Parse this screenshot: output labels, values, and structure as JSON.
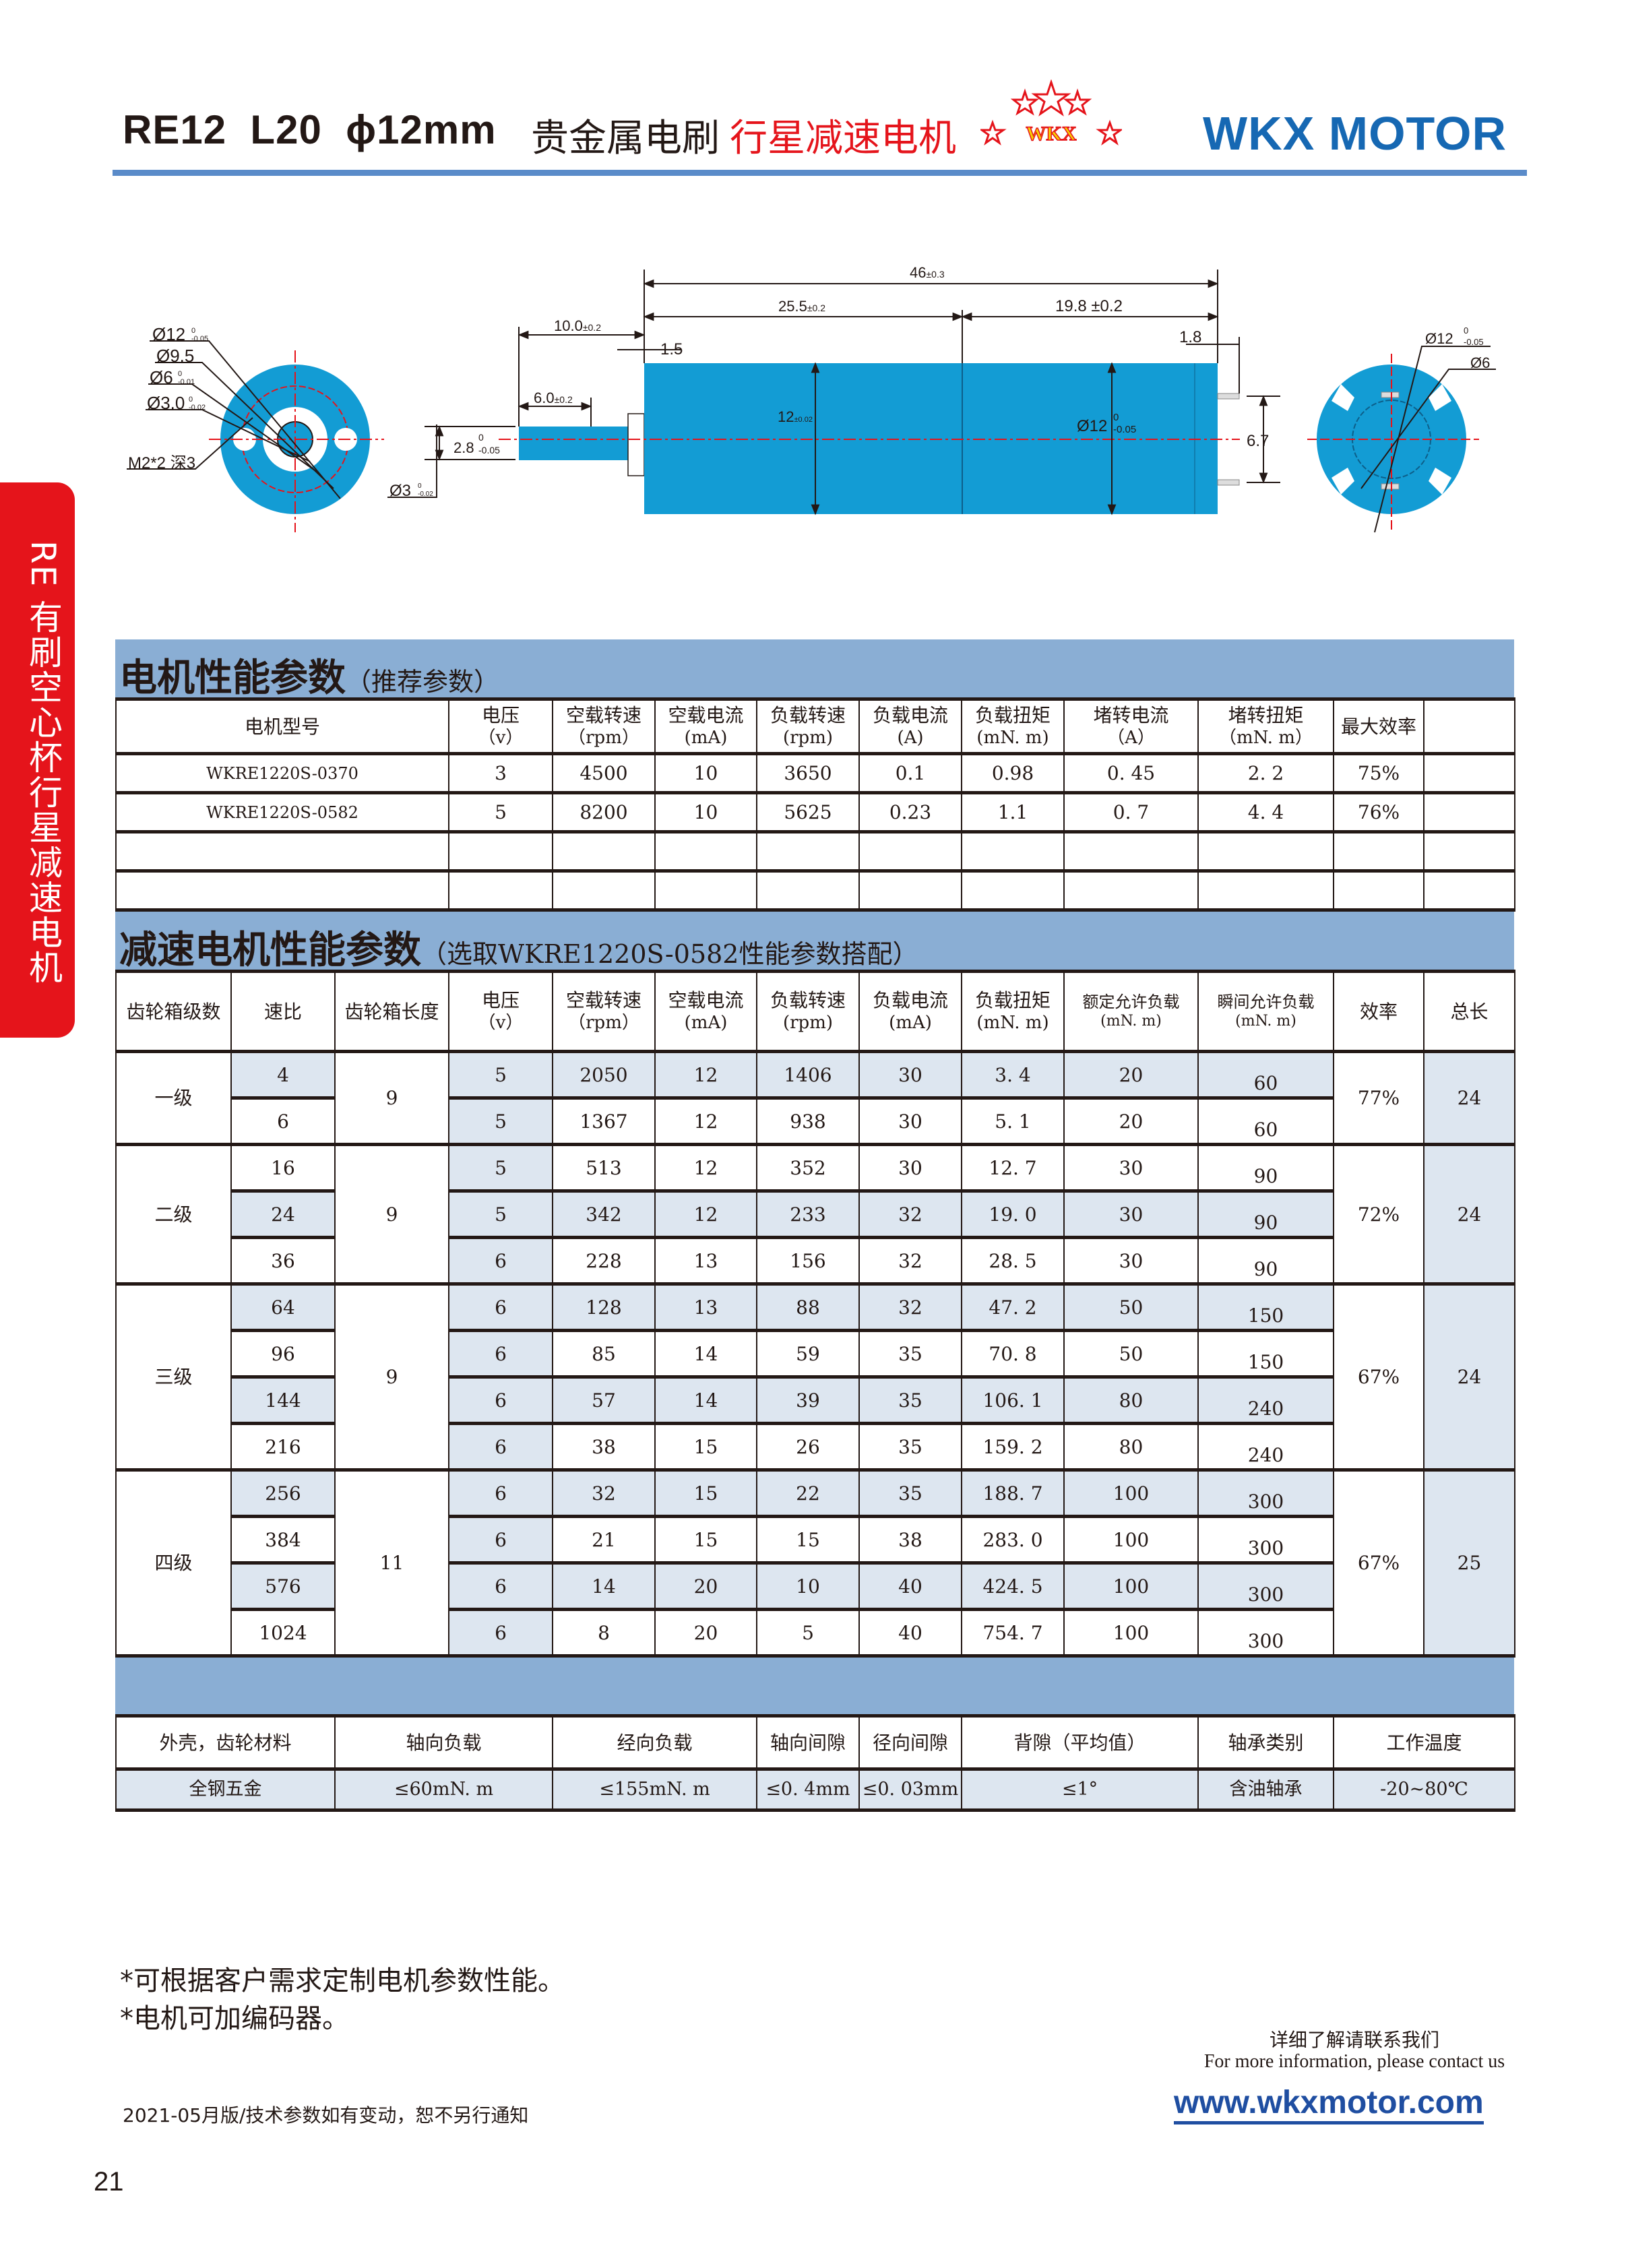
{
  "header": {
    "model": "RE12  L20  ϕ12mm",
    "title_black": "贵金属电刷",
    "title_red": "行星减速电机",
    "logo_text": "WKX",
    "brand": "WKX MOTOR"
  },
  "side_tab": "RE 有刷空心杯行星减速电机",
  "colors": {
    "accent_blue": "#5a8bc9",
    "motor_blue": "#139cd4",
    "band_blue": "#8aaed4",
    "cell_shade": "#dde6f0",
    "red": "#e5141b",
    "brand_blue": "#1668b3"
  },
  "drawing": {
    "front": {
      "d12": {
        "main": "Ø12",
        "tol_up": "0",
        "tol_low": "-0.05"
      },
      "d9_5": {
        "main": "Ø9.5"
      },
      "d6": {
        "main": "Ø6",
        "tol_up": "0",
        "tol_low": "-0.01"
      },
      "d3": {
        "main": "Ø3.0",
        "tol_up": "0",
        "tol_low": "-0.02"
      },
      "thread": "M2*2 深3"
    },
    "side": {
      "total": {
        "main": "46",
        "tol": "±0.3"
      },
      "gearbox": {
        "main": "25.5",
        "tol": "±0.2"
      },
      "motor": "19.8 ±0.2",
      "shaft": {
        "main": "10.0",
        "tol": "±0.2"
      },
      "flange": "1.5",
      "terminal": "1.8",
      "flat": {
        "main": "6.0",
        "tol": "±0.2"
      },
      "flat_depth": {
        "main": "2.8",
        "tol_up": "0",
        "tol_low": "-0.05"
      },
      "shaft_dia": {
        "main": "Ø3",
        "tol_up": "0",
        "tol_low": "-0.02"
      },
      "gear_dia": {
        "main": "12",
        "tol": "±0.02"
      },
      "motor_dia": {
        "main": "Ø12",
        "tol_up": "0",
        "tol_low": "-0.05"
      },
      "terminal_pitch": "6.7"
    },
    "back": {
      "d12": {
        "main": "Ø12",
        "tol_up": "0",
        "tol_low": "-0.05"
      },
      "d6": {
        "main": "Ø6"
      }
    }
  },
  "motor_table": {
    "title": "电机性能参数",
    "subtitle": "（推荐参数）",
    "headers": [
      {
        "label": "电机型号"
      },
      {
        "label": "电压",
        "unit": "（v）"
      },
      {
        "label": "空载转速",
        "unit": "（rpm）"
      },
      {
        "label": "空载电流",
        "unit": "(mA)"
      },
      {
        "label": "负载转速",
        "unit": "(rpm)"
      },
      {
        "label": "负载电流",
        "unit": "(A)"
      },
      {
        "label": "负载扭矩",
        "unit": "(mN. m)"
      },
      {
        "label": "堵转电流",
        "unit": "（A）"
      },
      {
        "label": "堵转扭矩",
        "unit": "（mN. m）"
      },
      {
        "label": "最大效率"
      },
      {
        "label": ""
      }
    ],
    "rows": [
      [
        "WKRE1220S-0370",
        "3",
        "4500",
        "10",
        "3650",
        "0.1",
        "0.98",
        "0. 45",
        "2. 2",
        "75%",
        ""
      ],
      [
        "WKRE1220S-0582",
        "5",
        "8200",
        "10",
        "5625",
        "0.23",
        "1.1",
        "0. 7",
        "4. 4",
        "76%",
        ""
      ],
      [
        "",
        "",
        "",
        "",
        "",
        "",
        "",
        "",
        "",
        "",
        ""
      ],
      [
        "",
        "",
        "",
        "",
        "",
        "",
        "",
        "",
        "",
        "",
        ""
      ]
    ]
  },
  "reducer_table": {
    "title": "减速电机性能参数",
    "subtitle": "（选取WKRE1220S-0582性能参数搭配）",
    "headers": [
      {
        "label": "齿轮箱级数"
      },
      {
        "label": "速比"
      },
      {
        "label": "齿轮箱长度"
      },
      {
        "label": "电压",
        "unit": "（v）"
      },
      {
        "label": "空载转速",
        "unit": "（rpm）"
      },
      {
        "label": "空载电流",
        "unit": "(mA)"
      },
      {
        "label": "负载转速",
        "unit": "(rpm)"
      },
      {
        "label": "负载电流",
        "unit": "(mA)"
      },
      {
        "label": "负载扭矩",
        "unit": "(mN. m)"
      },
      {
        "label": "额定允许负载",
        "unit": "(mN. m)"
      },
      {
        "label": "瞬间允许负载",
        "unit": "(mN. m)"
      },
      {
        "label": "效率"
      },
      {
        "label": "总长"
      }
    ],
    "stages": [
      {
        "stage": "一级",
        "gearbox_length": "9",
        "efficiency": "77%",
        "total_length": "24",
        "rows": [
          [
            "4",
            "5",
            "2050",
            "12",
            "1406",
            "30",
            "3. 4",
            "20",
            "60"
          ],
          [
            "6",
            "5",
            "1367",
            "12",
            "938",
            "30",
            "5. 1",
            "20",
            "60"
          ]
        ]
      },
      {
        "stage": "二级",
        "gearbox_length": "9",
        "efficiency": "72%",
        "total_length": "24",
        "rows": [
          [
            "16",
            "5",
            "513",
            "12",
            "352",
            "30",
            "12. 7",
            "30",
            "90"
          ],
          [
            "24",
            "5",
            "342",
            "12",
            "233",
            "32",
            "19. 0",
            "30",
            "90"
          ],
          [
            "36",
            "6",
            "228",
            "13",
            "156",
            "32",
            "28. 5",
            "30",
            "90"
          ]
        ]
      },
      {
        "stage": "三级",
        "gearbox_length": "9",
        "efficiency": "67%",
        "total_length": "24",
        "rows": [
          [
            "64",
            "6",
            "128",
            "13",
            "88",
            "32",
            "47. 2",
            "50",
            "150"
          ],
          [
            "96",
            "6",
            "85",
            "14",
            "59",
            "35",
            "70. 8",
            "50",
            "150"
          ],
          [
            "144",
            "6",
            "57",
            "14",
            "39",
            "35",
            "106. 1",
            "80",
            "240"
          ],
          [
            "216",
            "6",
            "38",
            "15",
            "26",
            "35",
            "159. 2",
            "80",
            "240"
          ]
        ]
      },
      {
        "stage": "四级",
        "gearbox_length": "11",
        "efficiency": "67%",
        "total_length": "25",
        "rows": [
          [
            "256",
            "6",
            "32",
            "15",
            "22",
            "35",
            "188. 7",
            "100",
            "300"
          ],
          [
            "384",
            "6",
            "21",
            "15",
            "15",
            "38",
            "283. 0",
            "100",
            "300"
          ],
          [
            "576",
            "6",
            "14",
            "20",
            "10",
            "40",
            "424. 5",
            "100",
            "300"
          ],
          [
            "1024",
            "6",
            "8",
            "20",
            "5",
            "40",
            "754. 7",
            "100",
            "300"
          ]
        ]
      }
    ]
  },
  "spec_table": {
    "headers": [
      "外壳，齿轮材料",
      "轴向负载",
      "经向负载",
      "轴向间隙",
      "径向间隙",
      "背隙（平均值）",
      "轴承类别",
      "工作温度"
    ],
    "values": [
      "全钢五金",
      "≤60mN. m",
      "≤155mN. m",
      "≤0. 4mm",
      "≤0. 03mm",
      "≤1°",
      "含油轴承",
      "-20~80℃"
    ]
  },
  "notes": [
    "*可根据客户需求定制电机参数性能。",
    "*电机可加编码器。"
  ],
  "contact": {
    "cn": "详细了解请联系我们",
    "en": "For more information, please contact us",
    "website": "www.wkxmotor.com"
  },
  "footer_note": "2021-05月版/技术参数如有变动，恕不另行通知",
  "page_number": "21"
}
